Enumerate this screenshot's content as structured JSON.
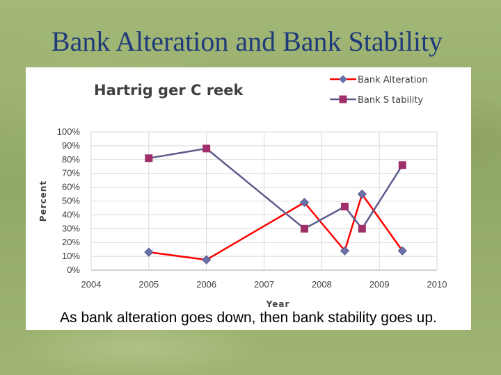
{
  "slide": {
    "title": "Bank Alteration and Bank Stability",
    "caption": "As bank alteration goes down, then bank stability goes up."
  },
  "chart_data": {
    "type": "line",
    "title": "Hartrig ger C reek",
    "xlabel": "Year",
    "ylabel": "Percent",
    "xlim": [
      2004,
      2010
    ],
    "ylim": [
      0,
      1
    ],
    "x_ticks": [
      "2004",
      "2005",
      "2006",
      "2007",
      "2008",
      "2009",
      "2010"
    ],
    "y_ticks": [
      "100%",
      "90%",
      "80%",
      "70%",
      "60%",
      "50%",
      "40%",
      "30%",
      "20%",
      "10%",
      "0%"
    ],
    "grid": true,
    "legend_position": "top-right",
    "series": [
      {
        "name": "Bank  Alteration",
        "color": "#ff0000",
        "marker": "diamond",
        "marker_color": "#6b70a8",
        "x": [
          2005,
          2006,
          2007.7,
          2008.4,
          2008.7,
          2009.4
        ],
        "y": [
          0.13,
          0.075,
          0.49,
          0.14,
          0.55,
          0.14
        ]
      },
      {
        "name": "Bank  S tability",
        "color": "#5c5c8c",
        "marker": "square",
        "marker_color": "#a0306a",
        "x": [
          2005,
          2006,
          2007.7,
          2008.4,
          2008.7,
          2009.4
        ],
        "y": [
          0.81,
          0.88,
          0.3,
          0.46,
          0.3,
          0.76
        ]
      }
    ]
  }
}
